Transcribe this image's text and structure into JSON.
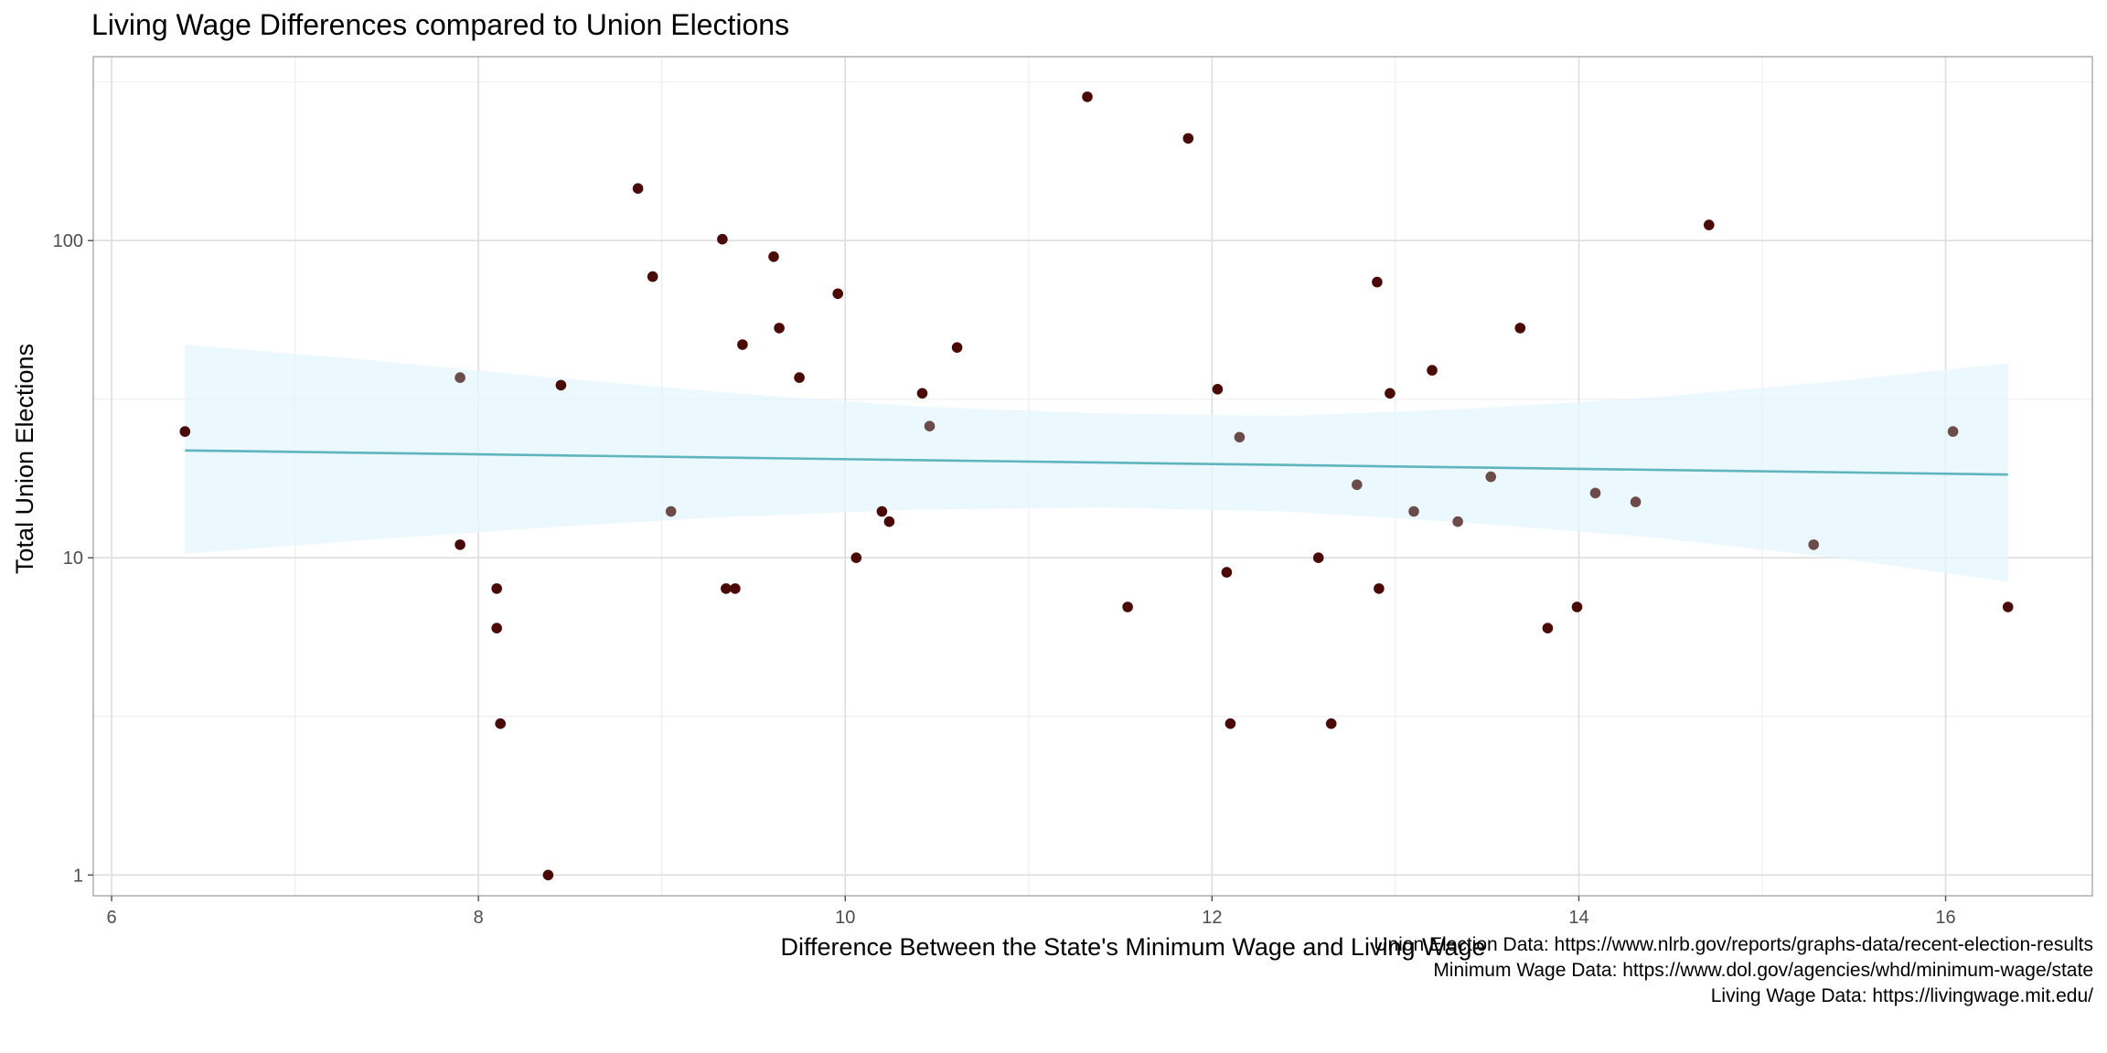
{
  "chart_data": {
    "type": "scatter",
    "title": "Living Wage Differences compared to Union Elections",
    "xlabel": "Difference Between the State's Minimum Wage and Living Wage",
    "ylabel": "Total Union Elections",
    "xlim": [
      5.9,
      16.8
    ],
    "ylim": [
      0.86,
      380
    ],
    "y_scale": "log10",
    "x_ticks": [
      6,
      8,
      10,
      12,
      14,
      16
    ],
    "y_ticks": [
      1,
      10,
      100
    ],
    "x_tick_labels": [
      "6",
      "8",
      "10",
      "12",
      "14",
      "16"
    ],
    "y_tick_labels": [
      "1",
      "10",
      "100"
    ],
    "grid": true,
    "colors": {
      "point": "#4a0a08",
      "point_overlap": "#6b4c4a",
      "trend_line": "#5fb5bd",
      "ribbon": "#e4f5fc",
      "grid_major": "#dedede",
      "grid_minor": "#efefef",
      "panel_border": "#b3b3b3"
    },
    "points": [
      {
        "x": 6.4,
        "y": 25
      },
      {
        "x": 7.9,
        "y": 37,
        "overlap": true
      },
      {
        "x": 7.9,
        "y": 11
      },
      {
        "x": 8.1,
        "y": 8
      },
      {
        "x": 8.1,
        "y": 6
      },
      {
        "x": 8.12,
        "y": 3
      },
      {
        "x": 8.38,
        "y": 1
      },
      {
        "x": 8.45,
        "y": 35
      },
      {
        "x": 8.87,
        "y": 146
      },
      {
        "x": 8.95,
        "y": 77
      },
      {
        "x": 9.05,
        "y": 14,
        "overlap": true
      },
      {
        "x": 9.33,
        "y": 101
      },
      {
        "x": 9.35,
        "y": 8
      },
      {
        "x": 9.4,
        "y": 8
      },
      {
        "x": 9.44,
        "y": 47
      },
      {
        "x": 9.61,
        "y": 89
      },
      {
        "x": 9.64,
        "y": 53
      },
      {
        "x": 9.75,
        "y": 37
      },
      {
        "x": 9.96,
        "y": 68
      },
      {
        "x": 10.06,
        "y": 10
      },
      {
        "x": 10.2,
        "y": 14
      },
      {
        "x": 10.24,
        "y": 13
      },
      {
        "x": 10.42,
        "y": 33
      },
      {
        "x": 10.46,
        "y": 26,
        "overlap": true
      },
      {
        "x": 10.61,
        "y": 46
      },
      {
        "x": 11.32,
        "y": 284
      },
      {
        "x": 11.54,
        "y": 7
      },
      {
        "x": 11.87,
        "y": 210
      },
      {
        "x": 12.03,
        "y": 34
      },
      {
        "x": 12.08,
        "y": 9
      },
      {
        "x": 12.1,
        "y": 3
      },
      {
        "x": 12.15,
        "y": 24,
        "overlap": true
      },
      {
        "x": 12.58,
        "y": 10
      },
      {
        "x": 12.65,
        "y": 3
      },
      {
        "x": 12.79,
        "y": 17,
        "overlap": true
      },
      {
        "x": 12.9,
        "y": 74
      },
      {
        "x": 12.91,
        "y": 8
      },
      {
        "x": 12.97,
        "y": 33
      },
      {
        "x": 13.1,
        "y": 14,
        "overlap": true
      },
      {
        "x": 13.2,
        "y": 39
      },
      {
        "x": 13.34,
        "y": 13,
        "overlap": true
      },
      {
        "x": 13.52,
        "y": 18,
        "overlap": true
      },
      {
        "x": 13.68,
        "y": 53
      },
      {
        "x": 13.83,
        "y": 6
      },
      {
        "x": 13.99,
        "y": 7
      },
      {
        "x": 14.09,
        "y": 16,
        "overlap": true
      },
      {
        "x": 14.31,
        "y": 15,
        "overlap": true
      },
      {
        "x": 14.71,
        "y": 112
      },
      {
        "x": 15.28,
        "y": 11,
        "overlap": true
      },
      {
        "x": 16.04,
        "y": 25,
        "overlap": true
      },
      {
        "x": 16.34,
        "y": 7
      }
    ],
    "trend": {
      "x": [
        6.4,
        16.34
      ],
      "y": [
        21.8,
        18.3
      ]
    },
    "ribbon": [
      {
        "x": 6.4,
        "lower": 10.3,
        "upper": 47
      },
      {
        "x": 7.4,
        "lower": 11.4,
        "upper": 42
      },
      {
        "x": 8.4,
        "lower": 12.5,
        "upper": 37
      },
      {
        "x": 9.4,
        "lower": 13.5,
        "upper": 33
      },
      {
        "x": 10.4,
        "lower": 14.2,
        "upper": 30
      },
      {
        "x": 11.4,
        "lower": 14.4,
        "upper": 28.5
      },
      {
        "x": 12.4,
        "lower": 14.0,
        "upper": 28
      },
      {
        "x": 13.4,
        "lower": 12.9,
        "upper": 29.5
      },
      {
        "x": 14.4,
        "lower": 11.6,
        "upper": 32
      },
      {
        "x": 15.4,
        "lower": 10.0,
        "upper": 36
      },
      {
        "x": 16.34,
        "lower": 8.4,
        "upper": 41
      }
    ]
  },
  "caption": {
    "lines": [
      "Union Election Data: https://www.nlrb.gov/reports/graphs-data/recent-election-results",
      "Minimum Wage Data: https://www.dol.gov/agencies/whd/minimum-wage/state",
      "Living Wage Data: https://livingwage.mit.edu/"
    ]
  }
}
